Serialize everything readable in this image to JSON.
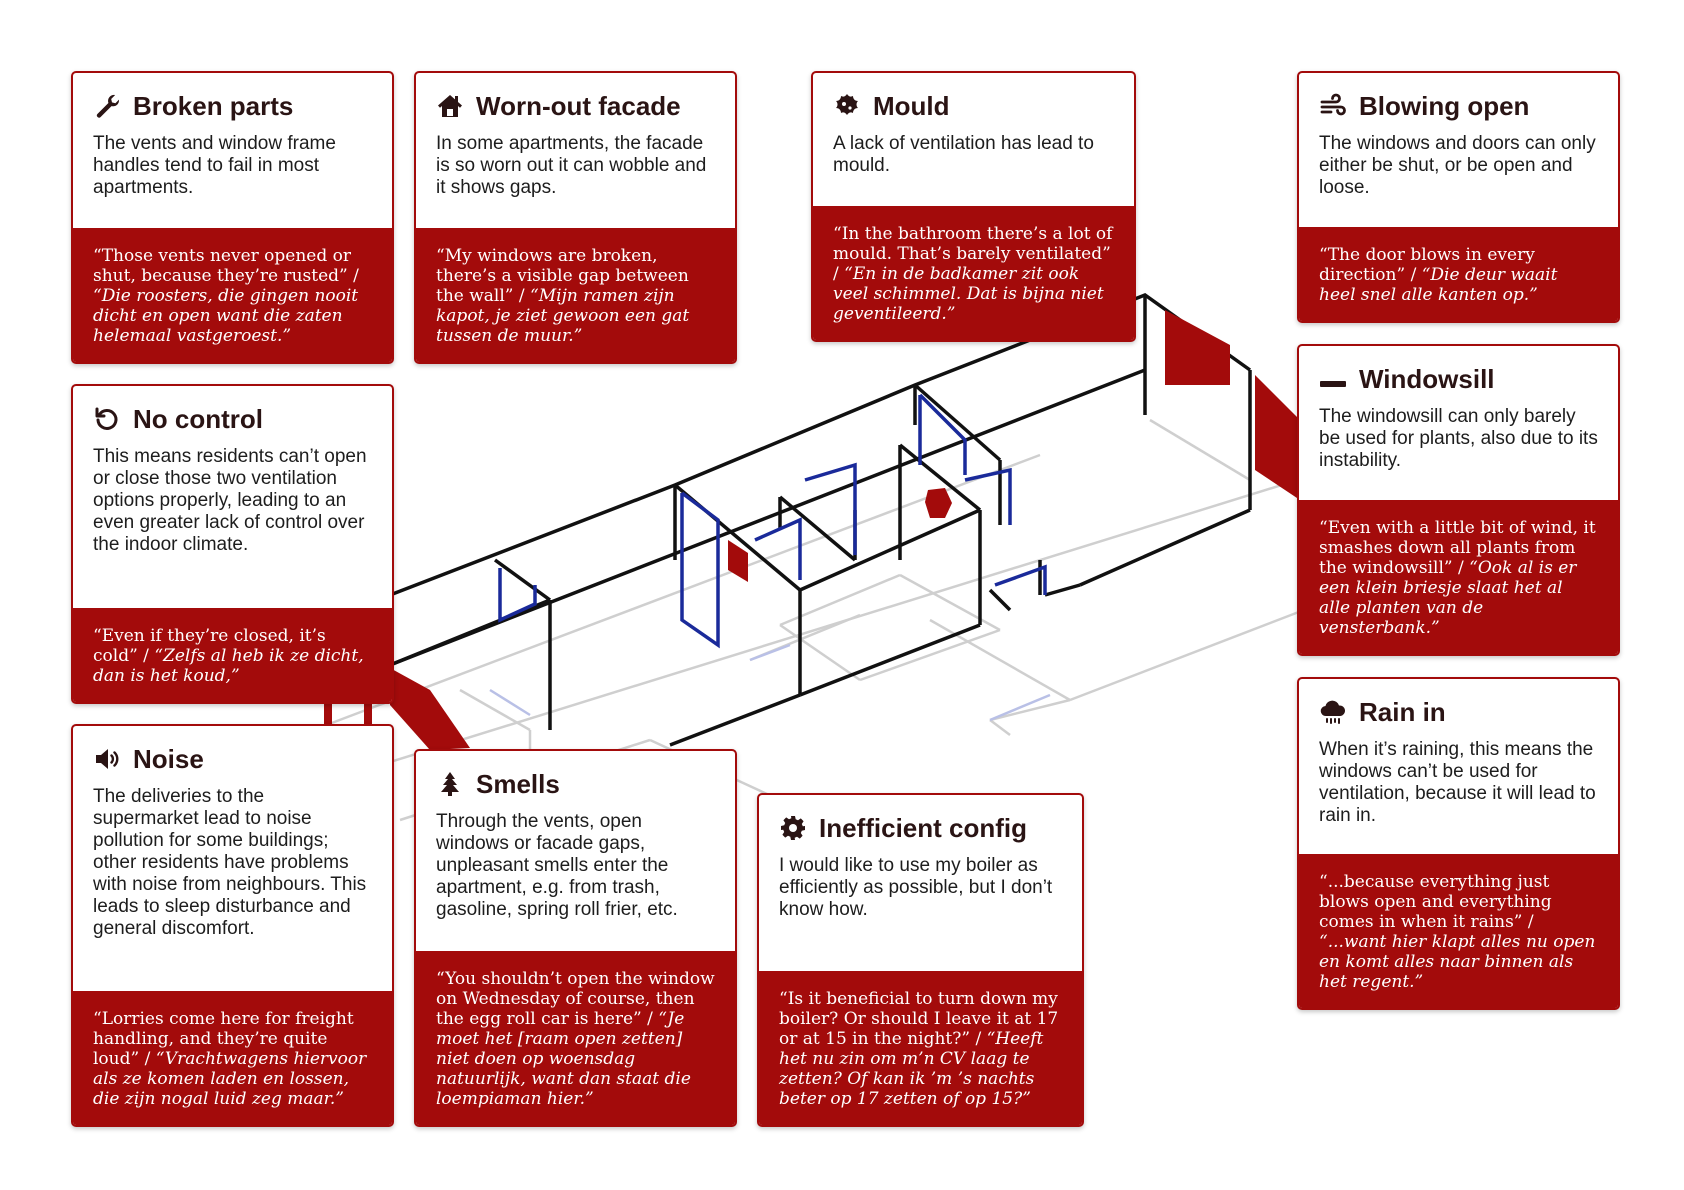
{
  "cards": [
    {
      "id": "broken-parts",
      "icon": "wrench-icon",
      "title": "Broken parts",
      "description": "The vents and window frame handles tend to fail in most apartments.",
      "quote_en": "“Those vents never opened or shut, because they’re rusted” / ",
      "quote_nl": "“Die roosters, die gingen nooit dicht en open want die zaten helemaal vastgeroest.”"
    },
    {
      "id": "worn-out-facade",
      "icon": "house-icon",
      "title": "Worn-out facade",
      "description": "In some apartments, the facade is so worn out it can wobble and it shows gaps.",
      "quote_en": "“My windows are broken, there’s a visible gap between the wall” / ",
      "quote_nl": "“Mijn ramen zijn kapot, je ziet gewoon een gat tussen de muur.”"
    },
    {
      "id": "mould",
      "icon": "mould-icon",
      "title": "Mould",
      "description": "A lack of ventilation has lead to mould.",
      "quote_en": "“In the bathroom there’s a lot of mould. That’s barely ventilated” / ",
      "quote_nl": "“En in de badkamer zit ook veel schimmel. Dat is bijna niet geventileerd.”"
    },
    {
      "id": "blowing-open",
      "icon": "wind-icon",
      "title": "Blowing open",
      "description": "The windows and doors can only either be shut, or be open and loose.",
      "quote_en": "“The door blows in every direction” / ",
      "quote_nl": "“Die deur waait heel snel alle kanten op.”"
    },
    {
      "id": "no-control",
      "icon": "undo-icon",
      "title": "No control",
      "description": "This means residents can’t open or close those two ventilation options properly, leading to an even greater lack of control over the indoor climate.",
      "quote_en": "“Even if they’re closed, it’s cold” / ",
      "quote_nl": "“Zelfs al heb ik ze dicht, dan is het koud,”"
    },
    {
      "id": "windowsill",
      "icon": "windowsill-icon",
      "title": "Windowsill",
      "description": "The windowsill can only barely be used for plants, also due to its instability.",
      "quote_en": "“Even with a little bit of wind, it smashes down all plants from the windowsill” / ",
      "quote_nl": "“Ook al is er een klein briesje slaat het al alle planten van de vensterbank.”"
    },
    {
      "id": "rain-in",
      "icon": "rain-cloud-icon",
      "title": "Rain in",
      "description": "When it’s raining, this means the windows can’t be used for ventilation, because it will lead to rain in.",
      "quote_en": "“...because everything just blows open and everything comes in when it rains” / ",
      "quote_nl": "“...want hier klapt alles nu open en komt alles naar binnen als het regent.”"
    },
    {
      "id": "noise",
      "icon": "speaker-icon",
      "title": "Noise",
      "description": "The deliveries to the supermarket lead to noise pollution for some buildings; other residents have problems with noise from neighbours. This leads to sleep disturbance and general discomfort.",
      "quote_en": "“Lorries come here for freight handling, and they’re quite loud” / ",
      "quote_nl": "“Vrachtwagens hiervoor als ze komen laden en lossen, die zijn nogal luid zeg maar.”"
    },
    {
      "id": "smells",
      "icon": "smell-icon",
      "title": "Smells",
      "description": "Through the vents, open windows or facade gaps, unpleasant smells enter the apartment, e.g. from trash, gasoline, spring roll frier, etc.",
      "quote_en": "“You shouldn’t open the window on Wednesday of course, then the egg roll car is here” / ",
      "quote_nl": "“Je moet het [raam open zetten] niet doen op woensdag natuurlijk, want dan staat die loempiaman hier.”"
    },
    {
      "id": "inefficient-config",
      "icon": "gear-icon",
      "title": "Inefficient config",
      "description": "I would like to use my boiler as efficiently as possible, but I don’t know how.",
      "quote_en": "“Is it beneficial to turn down my boiler? Or should I leave it at 17 or at 15 in the night?” / ",
      "quote_nl": "“Heeft het nu zin om m’n CV laag te zetten? Of kan ik ’m ’s nachts beter op 17 zetten of op 15?”"
    }
  ],
  "colors": {
    "accent": "#a30b0b",
    "title_text": "#2a1414",
    "wall": "#111111",
    "window": "#1a2a9a",
    "floor_line": "#cfcfcf"
  }
}
